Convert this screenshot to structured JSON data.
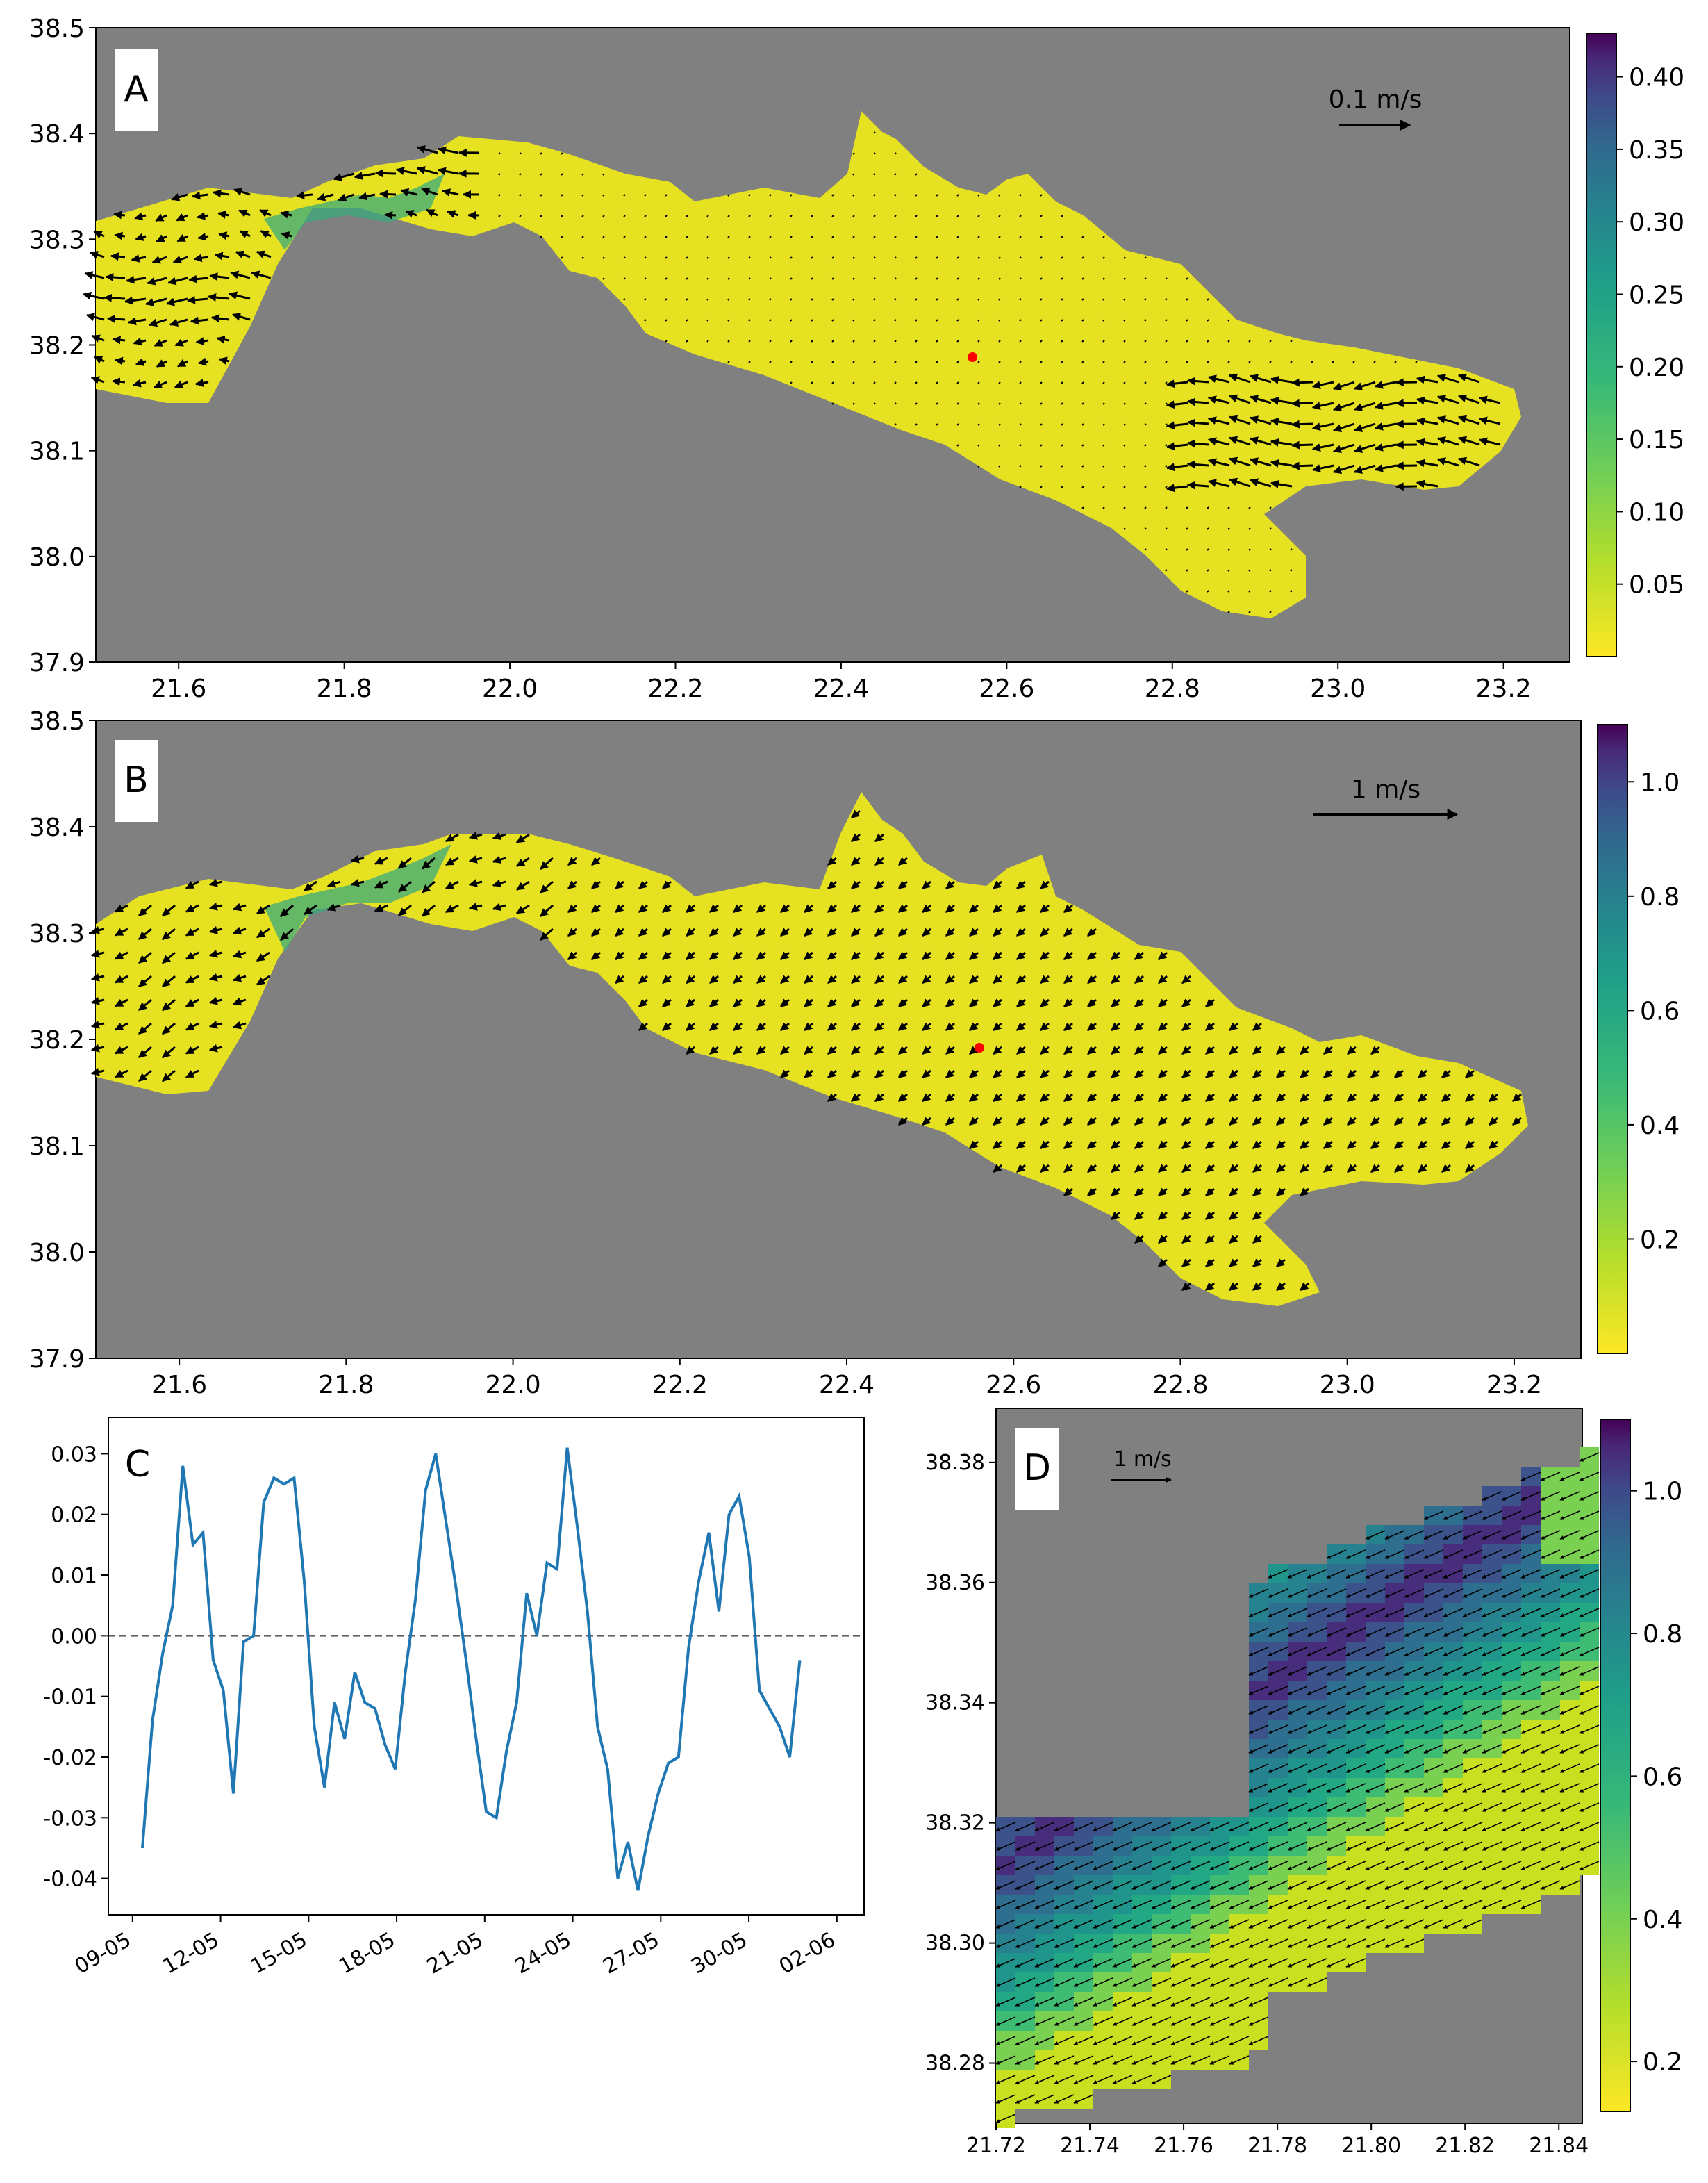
{
  "chart_data": [
    {
      "panel": "A",
      "type": "heatmap",
      "quantity": "current speed with velocity vectors",
      "x_ticks": [
        "21.6",
        "21.8",
        "22.0",
        "22.2",
        "22.4",
        "22.6",
        "22.8",
        "23.0",
        "23.2"
      ],
      "y_ticks": [
        "38.5",
        "38.4",
        "38.3",
        "38.2",
        "38.1",
        "38.0",
        "37.9"
      ],
      "xlim": [
        21.5,
        23.28
      ],
      "ylim": [
        37.9,
        38.5
      ],
      "colorbar_ticks": [
        "0.40",
        "0.35",
        "0.30",
        "0.25",
        "0.20",
        "0.15",
        "0.10",
        "0.05"
      ],
      "colorbar_range": [
        0.0,
        0.43
      ],
      "colormap": "viridis_r",
      "land_color": "#808080",
      "vector_scale_label": "0.1 m/s",
      "marker": {
        "x": 22.56,
        "y": 38.19,
        "color": "#ff0000"
      }
    },
    {
      "panel": "B",
      "type": "heatmap",
      "quantity": "current speed with velocity vectors",
      "x_ticks": [
        "21.6",
        "21.8",
        "22.0",
        "22.2",
        "22.4",
        "22.6",
        "22.8",
        "23.0",
        "23.2"
      ],
      "y_ticks": [
        "38.5",
        "38.4",
        "38.3",
        "38.2",
        "38.1",
        "38.0",
        "37.9"
      ],
      "xlim": [
        21.5,
        23.28
      ],
      "ylim": [
        37.9,
        38.5
      ],
      "colorbar_ticks": [
        "1.0",
        "0.8",
        "0.6",
        "0.4",
        "0.2"
      ],
      "colorbar_range": [
        0.0,
        1.1
      ],
      "colormap": "viridis_r",
      "land_color": "#808080",
      "vector_scale_label": "1 m/s",
      "marker": {
        "x": 22.56,
        "y": 38.19,
        "color": "#ff0000"
      }
    },
    {
      "panel": "C",
      "type": "line",
      "x_tick_labels": [
        "09-05",
        "12-05",
        "15-05",
        "18-05",
        "21-05",
        "24-05",
        "27-05",
        "30-05",
        "02-06"
      ],
      "y_tick_labels": [
        "0.03",
        "0.02",
        "0.01",
        "0.00",
        "-0.01",
        "-0.02",
        "-0.03",
        "-0.04"
      ],
      "ylim": [
        -0.046,
        0.036
      ],
      "xlim": [
        "08-05",
        "02-06"
      ],
      "zero_line": "dashed",
      "series": [
        {
          "color": "#1f77b4",
          "x": [
            "10-05",
            "10-05",
            "11-05",
            "11-05",
            "11-05",
            "12-05",
            "12-05",
            "12-05",
            "12-05",
            "13-05",
            "13-05",
            "13-05",
            "14-05",
            "14-05",
            "14-05",
            "14-05",
            "15-05",
            "15-05",
            "16-05",
            "16-05",
            "17-05",
            "17-05",
            "17-05",
            "18-05",
            "18-05",
            "18-05",
            "19-05",
            "19-05",
            "19-05",
            "19-05",
            "20-05",
            "20-05",
            "21-05",
            "21-05",
            "21-05",
            "22-05",
            "22-05",
            "22-05",
            "23-05",
            "23-05",
            "23-05",
            "24-05",
            "24-05",
            "24-05",
            "25-05",
            "25-05",
            "25-05",
            "26-05",
            "26-05",
            "26-05",
            "27-05",
            "27-05",
            "28-05",
            "28-05",
            "28-05",
            "29-05",
            "29-05",
            "29-05",
            "30-05",
            "30-05",
            "30-05",
            "31-05",
            "31-05",
            "01-06",
            "01-06",
            "01-06"
          ],
          "y": [
            -0.035,
            -0.014,
            -0.003,
            0.005,
            0.028,
            0.015,
            0.017,
            -0.004,
            -0.009,
            -0.026,
            -0.001,
            0.0,
            0.022,
            0.026,
            0.025,
            0.026,
            0.009,
            -0.015,
            -0.025,
            -0.011,
            -0.017,
            -0.006,
            -0.011,
            -0.012,
            -0.018,
            -0.022,
            -0.006,
            0.006,
            0.024,
            0.03,
            0.019,
            0.008,
            -0.004,
            -0.017,
            -0.029,
            -0.03,
            -0.019,
            -0.011,
            0.007,
            0.0,
            0.012,
            0.011,
            0.031,
            0.018,
            0.004,
            -0.015,
            -0.022,
            -0.04,
            -0.034,
            -0.042,
            -0.033,
            -0.026,
            -0.021,
            -0.02,
            -0.002,
            0.009,
            0.017,
            0.004,
            0.02,
            0.023,
            0.013,
            -0.009,
            -0.012,
            -0.015,
            -0.02,
            -0.004
          ]
        }
      ]
    },
    {
      "panel": "D",
      "type": "heatmap",
      "quantity": "current speed with velocity vectors (zoom)",
      "x_ticks": [
        "21.72",
        "21.74",
        "21.76",
        "21.78",
        "21.80",
        "21.82",
        "21.84"
      ],
      "y_ticks": [
        "38.38",
        "38.36",
        "38.34",
        "38.32",
        "38.30",
        "38.28"
      ],
      "xlim": [
        21.72,
        21.845
      ],
      "ylim": [
        38.27,
        38.389
      ],
      "colorbar_ticks": [
        "1.0",
        "0.8",
        "0.6",
        "0.4",
        "0.2"
      ],
      "colorbar_range": [
        0.13,
        1.1
      ],
      "colormap": "viridis_r",
      "land_color": "#808080",
      "vector_scale_label": "1 m/s"
    }
  ],
  "labels": {
    "a": "A",
    "b": "B",
    "c": "C",
    "d": "D"
  }
}
